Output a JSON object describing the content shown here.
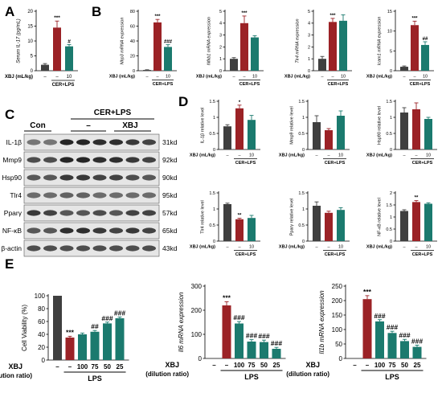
{
  "figure": {
    "panels": {
      "A": "A",
      "B": "B",
      "C": "C",
      "D": "D",
      "E": "E"
    }
  },
  "colors": {
    "con": "#3f3f3f",
    "lps": "#9b2226",
    "xbj": "#1b7a6e"
  },
  "groups_3": [
    "–",
    "–",
    "10"
  ],
  "groups_e": [
    "–",
    "–",
    "100",
    "75",
    "50",
    "25"
  ],
  "labels": {
    "xbj_mlkg": "XBJ (mL/kg)",
    "cer_lps": "CER+LPS",
    "lps": "LPS",
    "xbj": "XBJ",
    "dilution": "(dilution ratio)"
  },
  "blot": {
    "header_cer": "CER+LPS",
    "con": "Con",
    "dash": "–",
    "xbj": "XBJ",
    "rows": [
      {
        "name": "IL-1β",
        "kd": "31kd"
      },
      {
        "name": "Mmp9",
        "kd": "92kd"
      },
      {
        "name": "Hsp90",
        "kd": "90kd"
      },
      {
        "name": "Tlr4",
        "kd": "95kd"
      },
      {
        "name": "Pparγ",
        "kd": "57kd"
      },
      {
        "name": "NF-κB",
        "kd": "65kd"
      },
      {
        "name": "β-actin",
        "kd": "43kd"
      }
    ]
  },
  "chart_data": [
    {
      "panel": "A",
      "type": "bar",
      "ylabel": "Serum IL-17 (pg/mL)",
      "ylim": [
        0,
        20
      ],
      "yticks": [
        0,
        5,
        10,
        15,
        20
      ],
      "values": [
        2,
        14.5,
        8.2
      ],
      "errors": [
        0.4,
        2.2,
        0.6
      ],
      "sig": [
        "",
        "***",
        "#"
      ]
    },
    {
      "panel": "B1",
      "type": "bar",
      "ylabel": "Nlrp3 mRNA expression",
      "ylim": [
        0,
        80
      ],
      "yticks": [
        0,
        20,
        40,
        60,
        80
      ],
      "values": [
        1,
        65,
        32
      ],
      "errors": [
        0.3,
        4,
        3
      ],
      "sig": [
        "",
        "***",
        "###"
      ]
    },
    {
      "panel": "B2",
      "type": "bar",
      "ylabel": "Nfkb1 mRNA expression",
      "ylim": [
        0,
        5
      ],
      "yticks": [
        0,
        1,
        2,
        3,
        4,
        5
      ],
      "values": [
        1,
        4,
        2.8
      ],
      "errors": [
        0.1,
        0.6,
        0.15
      ],
      "sig": [
        "",
        "***",
        ""
      ]
    },
    {
      "panel": "B3",
      "type": "bar",
      "ylabel": "Tlr4 mRNA expression",
      "ylim": [
        0,
        5
      ],
      "yticks": [
        0,
        1,
        2,
        3,
        4,
        5
      ],
      "values": [
        1,
        4.1,
        4.2
      ],
      "errors": [
        0.2,
        0.3,
        0.5
      ],
      "sig": [
        "",
        "***",
        ""
      ]
    },
    {
      "panel": "B4",
      "type": "bar",
      "ylabel": "Icam1 mRNA expression",
      "ylim": [
        0,
        15
      ],
      "yticks": [
        0,
        5,
        10,
        15
      ],
      "values": [
        1,
        11.5,
        6.5
      ],
      "errors": [
        0.2,
        1.0,
        0.8
      ],
      "sig": [
        "",
        "***",
        "##"
      ]
    },
    {
      "panel": "D1",
      "type": "bar",
      "ylabel": "IL-1β relative level",
      "ylim": [
        0,
        1.5
      ],
      "yticks": [
        0,
        0.5,
        1.0,
        1.5
      ],
      "values": [
        0.72,
        1.28,
        0.92
      ],
      "errors": [
        0.05,
        0.1,
        0.14
      ],
      "sig": [
        "",
        "*",
        ""
      ]
    },
    {
      "panel": "D2",
      "type": "bar",
      "ylabel": "Mmp9 relative level",
      "ylim": [
        0,
        1.5
      ],
      "yticks": [
        0,
        0.5,
        1.0,
        1.5
      ],
      "values": [
        0.85,
        0.6,
        1.05
      ],
      "errors": [
        0.2,
        0.05,
        0.15
      ],
      "sig": [
        "",
        "",
        ""
      ]
    },
    {
      "panel": "D3",
      "type": "bar",
      "ylabel": "Hsp90 relative level",
      "ylim": [
        0,
        1.5
      ],
      "yticks": [
        0,
        0.5,
        1.0,
        1.5
      ],
      "values": [
        1.15,
        1.25,
        0.95
      ],
      "errors": [
        0.15,
        0.2,
        0.05
      ],
      "sig": [
        "",
        "",
        ""
      ]
    },
    {
      "panel": "D4",
      "type": "bar",
      "ylabel": "Tlr4 relative level",
      "ylim": [
        0,
        1.5
      ],
      "yticks": [
        0,
        0.5,
        1.0,
        1.5
      ],
      "values": [
        1.15,
        0.68,
        0.72
      ],
      "errors": [
        0.03,
        0.03,
        0.08
      ],
      "sig": [
        "",
        "**",
        ""
      ]
    },
    {
      "panel": "D5",
      "type": "bar",
      "ylabel": "Pparγ relative level",
      "ylim": [
        0,
        1.5
      ],
      "yticks": [
        0,
        0.5,
        1.0,
        1.5
      ],
      "values": [
        1.1,
        0.88,
        0.97
      ],
      "errors": [
        0.12,
        0.05,
        0.07
      ],
      "sig": [
        "",
        "",
        ""
      ]
    },
    {
      "panel": "D6",
      "type": "bar",
      "ylabel": "NF-κB relative level",
      "ylim": [
        0,
        2.0
      ],
      "yticks": [
        0,
        0.5,
        1.0,
        1.5,
        2.0
      ],
      "values": [
        1.25,
        1.62,
        1.55
      ],
      "errors": [
        0.05,
        0.06,
        0.04
      ],
      "sig": [
        "",
        "**",
        ""
      ]
    },
    {
      "panel": "E1",
      "type": "bar",
      "ylabel": "Cell Viability (%)",
      "ylim": [
        0,
        100
      ],
      "yticks": [
        0,
        20,
        40,
        60,
        80,
        100
      ],
      "values": [
        100,
        35,
        40,
        44,
        57,
        65
      ],
      "errors": [
        0,
        2,
        2,
        2,
        2,
        2
      ],
      "sig": [
        "",
        "***",
        "",
        "##",
        "###",
        "###"
      ]
    },
    {
      "panel": "E2",
      "type": "bar",
      "ylabel": "Il6 mRNA expression",
      "ylim": [
        0,
        300
      ],
      "yticks": [
        0,
        100,
        200,
        300
      ],
      "values": [
        0,
        220,
        145,
        70,
        68,
        40
      ],
      "errors": [
        0,
        15,
        8,
        8,
        8,
        6
      ],
      "sig": [
        "",
        "***",
        "###",
        "###",
        "###",
        "###"
      ]
    },
    {
      "panel": "E3",
      "type": "bar",
      "ylabel": "Il1b mRNA expression",
      "ylim": [
        0,
        250
      ],
      "yticks": [
        0,
        50,
        100,
        150,
        200,
        250
      ],
      "values": [
        0,
        205,
        128,
        88,
        60,
        40
      ],
      "errors": [
        0,
        12,
        6,
        6,
        6,
        6
      ],
      "sig": [
        "",
        "***",
        "###",
        "###",
        "###",
        "###"
      ]
    }
  ]
}
